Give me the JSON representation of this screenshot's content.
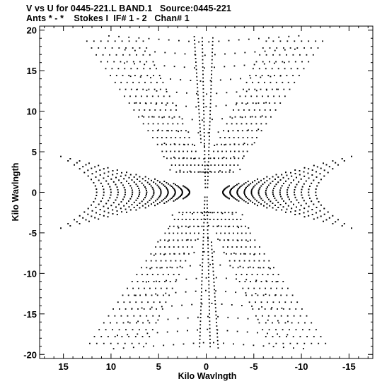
{
  "header": {
    "line1": "V vs U for 0445-221.L BAND.1   Source:0445-221",
    "line2": "Ants * - *    Stokes I  IF# 1 - 2   Chan# 1"
  },
  "chart_data": {
    "type": "scatter",
    "title": "V vs U for 0445-221.L BAND.1   Source:0445-221",
    "subtitle": "Ants * - *    Stokes I  IF# 1 - 2   Chan# 1",
    "xlabel": "Kilo Wavlngth",
    "ylabel": "Kilo Wavlngth",
    "xlim": [
      17.5,
      -17.5
    ],
    "ylim": [
      -20.5,
      20.5
    ],
    "x_axis_reversed": true,
    "xticks": [
      15,
      10,
      5,
      0,
      -5,
      -10,
      -15
    ],
    "xtick_labels": [
      "15",
      "10",
      "5",
      "0",
      "-5",
      "-10",
      "-15"
    ],
    "yticks": [
      20,
      15,
      10,
      5,
      0,
      -5,
      -10,
      -15,
      -20
    ],
    "ytick_labels": [
      "20",
      "15",
      "10",
      "5",
      "0",
      "-5",
      "-10",
      "-15",
      "-20"
    ],
    "grid": false,
    "marker_color": "#000000",
    "series": [
      {
        "description_of_coverage": "symmetric uv-coverage tracks (V vs U)",
        "tracks": [
          {
            "start": [
              0.0,
              0.0
            ],
            "end": [
              -0.2,
              19.0
            ]
          },
          {
            "start": [
              0.5,
              1.0
            ],
            "end": [
              2.0,
              17.5
            ]
          },
          {
            "start": [
              -0.5,
              1.0
            ],
            "end": [
              -2.3,
              17.6
            ]
          },
          {
            "start": [
              0.0,
              0.0
            ],
            "end": [
              9.0,
              2.5
            ]
          },
          {
            "start": [
              0.0,
              0.0
            ],
            "end": [
              -9.0,
              2.4
            ]
          },
          {
            "start": [
              0.0,
              0.0
            ],
            "end": [
              8.5,
              -2.7
            ]
          },
          {
            "start": [
              0.0,
              0.0
            ],
            "end": [
              -8.8,
              -2.6
            ]
          },
          {
            "start": [
              1.0,
              2.5
            ],
            "end": [
              8.8,
              18.5
            ]
          },
          {
            "start": [
              -1.0,
              2.5
            ],
            "end": [
              -8.5,
              18.0
            ]
          },
          {
            "start": [
              2.0,
              2.0
            ],
            "end": [
              15.0,
              3.5
            ]
          },
          {
            "start": [
              -2.0,
              2.0
            ],
            "end": [
              -15.0,
              3.8
            ]
          },
          {
            "start": [
              2.0,
              -2.0
            ],
            "end": [
              15.5,
              -0.5
            ]
          },
          {
            "start": [
              -2.0,
              -2.0
            ],
            "end": [
              -15.5,
              -0.8
            ]
          }
        ]
      }
    ]
  }
}
